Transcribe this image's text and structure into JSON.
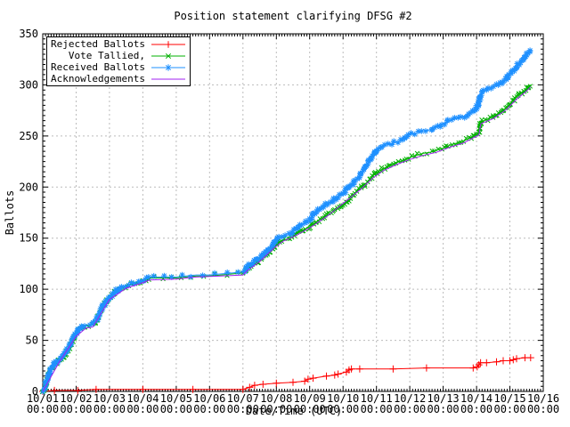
{
  "window": {
    "background": "#ffffff"
  },
  "chart_data": {
    "type": "line",
    "title": "Position statement clarifying DFSG #2",
    "xlabel": "Date/Time (UTC)",
    "ylabel": "Ballots",
    "grid": true,
    "legend_position": "top-left",
    "colors": {
      "grid": "#bcbcbc",
      "axis": "#000000",
      "background": "#ffffff"
    },
    "x_axis": {
      "tick_dates": [
        "10/01",
        "10/02",
        "10/03",
        "10/04",
        "10/05",
        "10/06",
        "10/07",
        "10/08",
        "10/09",
        "10/10",
        "10/11",
        "10/12",
        "10/13",
        "10/14",
        "10/15",
        "10/16"
      ],
      "tick_time": "00:00",
      "range_days": [
        0,
        15
      ],
      "minor_ticks_per_day": 12
    },
    "y_axis": {
      "ticks": [
        0,
        50,
        100,
        150,
        200,
        250,
        300,
        350
      ],
      "range": [
        0,
        350
      ],
      "minor_step": 5
    },
    "legend": {
      "entries": [
        {
          "label": "Rejected Ballots",
          "color": "#ff0000",
          "marker": "plus"
        },
        {
          "label": "Vote Tallied,",
          "color": "#00b000",
          "marker": "cross"
        },
        {
          "label": "Received Ballots",
          "color": "#1e90ff",
          "marker": "asterisk"
        },
        {
          "label": "Acknowledgements",
          "color": "#a020f0",
          "marker": "none"
        }
      ]
    },
    "series": [
      {
        "name": "Rejected Ballots",
        "color": "#ff0000",
        "marker": "plus",
        "band": false,
        "points": [
          [
            0,
            0
          ],
          [
            0.35,
            1
          ],
          [
            1.05,
            1
          ],
          [
            1.6,
            2
          ],
          [
            3.0,
            2
          ],
          [
            4.5,
            2
          ],
          [
            6.0,
            2
          ],
          [
            6.2,
            4
          ],
          [
            6.35,
            6
          ],
          [
            6.6,
            7
          ],
          [
            7.0,
            8
          ],
          [
            7.5,
            9
          ],
          [
            7.85,
            10
          ],
          [
            7.95,
            12
          ],
          [
            8.1,
            13
          ],
          [
            8.5,
            15
          ],
          [
            8.75,
            16
          ],
          [
            8.85,
            17
          ],
          [
            9.1,
            19
          ],
          [
            9.18,
            21
          ],
          [
            9.25,
            22
          ],
          [
            9.5,
            22
          ],
          [
            10.5,
            22
          ],
          [
            11.5,
            23
          ],
          [
            12.9,
            23
          ],
          [
            13.02,
            24
          ],
          [
            13.07,
            26
          ],
          [
            13.12,
            28
          ],
          [
            13.3,
            28
          ],
          [
            13.6,
            29
          ],
          [
            13.8,
            30
          ],
          [
            14.0,
            30
          ],
          [
            14.1,
            31
          ],
          [
            14.2,
            32
          ],
          [
            14.45,
            33
          ],
          [
            14.62,
            33
          ]
        ]
      },
      {
        "name": "Vote Tallied,",
        "color": "#00b000",
        "marker": "cross",
        "band": true,
        "points": [
          [
            0,
            0
          ],
          [
            0.08,
            5
          ],
          [
            0.15,
            13
          ],
          [
            0.25,
            21
          ],
          [
            0.35,
            26
          ],
          [
            0.5,
            30
          ],
          [
            0.65,
            35
          ],
          [
            0.75,
            40
          ],
          [
            0.85,
            47
          ],
          [
            0.95,
            53
          ],
          [
            1.05,
            58
          ],
          [
            1.15,
            62
          ],
          [
            1.3,
            64
          ],
          [
            1.5,
            65
          ],
          [
            1.62,
            70
          ],
          [
            1.72,
            77
          ],
          [
            1.82,
            83
          ],
          [
            1.92,
            88
          ],
          [
            2.02,
            92
          ],
          [
            2.12,
            95
          ],
          [
            2.22,
            98
          ],
          [
            2.35,
            101
          ],
          [
            2.5,
            103
          ],
          [
            2.7,
            105
          ],
          [
            2.9,
            107
          ],
          [
            3.05,
            109
          ],
          [
            3.2,
            111
          ],
          [
            3.5,
            111
          ],
          [
            3.75,
            111
          ],
          [
            4.0,
            111
          ],
          [
            4.3,
            112
          ],
          [
            4.6,
            113
          ],
          [
            5.0,
            113
          ],
          [
            5.35,
            114
          ],
          [
            5.7,
            115
          ],
          [
            6.0,
            116
          ],
          [
            6.12,
            119
          ],
          [
            6.22,
            122
          ],
          [
            6.35,
            125
          ],
          [
            6.5,
            128
          ],
          [
            6.65,
            132
          ],
          [
            6.8,
            137
          ],
          [
            6.95,
            142
          ],
          [
            7.05,
            146
          ],
          [
            7.2,
            148
          ],
          [
            7.4,
            150
          ],
          [
            7.55,
            153
          ],
          [
            7.7,
            156
          ],
          [
            7.85,
            159
          ],
          [
            8.0,
            161
          ],
          [
            8.15,
            165
          ],
          [
            8.3,
            168
          ],
          [
            8.5,
            172
          ],
          [
            8.7,
            176
          ],
          [
            8.9,
            181
          ],
          [
            9.1,
            186
          ],
          [
            9.3,
            192
          ],
          [
            9.5,
            198
          ],
          [
            9.7,
            204
          ],
          [
            9.9,
            211
          ],
          [
            10.0,
            214
          ],
          [
            10.2,
            218
          ],
          [
            10.4,
            221
          ],
          [
            10.6,
            224
          ],
          [
            10.8,
            226
          ],
          [
            11.0,
            229
          ],
          [
            11.2,
            231
          ],
          [
            11.4,
            233
          ],
          [
            11.6,
            234
          ],
          [
            11.8,
            236
          ],
          [
            12.0,
            238
          ],
          [
            12.2,
            241
          ],
          [
            12.4,
            243
          ],
          [
            12.6,
            245
          ],
          [
            12.8,
            248
          ],
          [
            12.95,
            251
          ],
          [
            13.07,
            253
          ],
          [
            13.13,
            264
          ],
          [
            13.3,
            266
          ],
          [
            13.5,
            269
          ],
          [
            13.7,
            273
          ],
          [
            13.9,
            278
          ],
          [
            14.05,
            283
          ],
          [
            14.2,
            288
          ],
          [
            14.35,
            292
          ],
          [
            14.5,
            296
          ],
          [
            14.62,
            300
          ]
        ]
      },
      {
        "name": "Received Ballots",
        "color": "#1e90ff",
        "marker": "asterisk",
        "band": true,
        "points": [
          [
            0,
            0
          ],
          [
            0.08,
            6
          ],
          [
            0.15,
            14
          ],
          [
            0.25,
            22
          ],
          [
            0.35,
            27
          ],
          [
            0.5,
            31
          ],
          [
            0.65,
            36
          ],
          [
            0.75,
            41
          ],
          [
            0.85,
            48
          ],
          [
            0.95,
            54
          ],
          [
            1.05,
            59
          ],
          [
            1.15,
            63
          ],
          [
            1.3,
            65
          ],
          [
            1.5,
            66
          ],
          [
            1.62,
            71
          ],
          [
            1.72,
            78
          ],
          [
            1.82,
            84
          ],
          [
            1.92,
            89
          ],
          [
            2.02,
            93
          ],
          [
            2.12,
            96
          ],
          [
            2.22,
            99
          ],
          [
            2.35,
            102
          ],
          [
            2.5,
            104
          ],
          [
            2.7,
            106
          ],
          [
            2.9,
            108
          ],
          [
            3.05,
            110
          ],
          [
            3.2,
            112
          ],
          [
            3.5,
            112
          ],
          [
            3.75,
            112
          ],
          [
            4.0,
            112
          ],
          [
            4.3,
            113
          ],
          [
            4.6,
            114
          ],
          [
            5.0,
            114
          ],
          [
            5.35,
            115
          ],
          [
            5.7,
            116
          ],
          [
            6.0,
            117
          ],
          [
            6.12,
            121
          ],
          [
            6.22,
            125
          ],
          [
            6.35,
            128
          ],
          [
            6.5,
            131
          ],
          [
            6.65,
            135
          ],
          [
            6.8,
            140
          ],
          [
            6.95,
            146
          ],
          [
            7.05,
            150
          ],
          [
            7.2,
            152
          ],
          [
            7.4,
            154
          ],
          [
            7.55,
            158
          ],
          [
            7.7,
            162
          ],
          [
            7.85,
            165
          ],
          [
            8.0,
            168
          ],
          [
            8.12,
            173
          ],
          [
            8.25,
            178
          ],
          [
            8.4,
            181
          ],
          [
            8.55,
            184
          ],
          [
            8.7,
            187
          ],
          [
            8.85,
            190
          ],
          [
            9.0,
            194
          ],
          [
            9.15,
            199
          ],
          [
            9.3,
            204
          ],
          [
            9.45,
            209
          ],
          [
            9.6,
            216
          ],
          [
            9.75,
            224
          ],
          [
            9.9,
            231
          ],
          [
            10.0,
            236
          ],
          [
            10.15,
            239
          ],
          [
            10.3,
            241
          ],
          [
            10.5,
            243
          ],
          [
            10.7,
            245
          ],
          [
            10.85,
            248
          ],
          [
            11.0,
            251
          ],
          [
            11.2,
            253
          ],
          [
            11.4,
            255
          ],
          [
            11.6,
            256
          ],
          [
            11.8,
            259
          ],
          [
            12.0,
            262
          ],
          [
            12.2,
            265
          ],
          [
            12.4,
            267
          ],
          [
            12.6,
            269
          ],
          [
            12.8,
            272
          ],
          [
            12.95,
            275
          ],
          [
            13.05,
            280
          ],
          [
            13.1,
            289
          ],
          [
            13.2,
            294
          ],
          [
            13.3,
            296
          ],
          [
            13.5,
            298
          ],
          [
            13.65,
            300
          ],
          [
            13.8,
            304
          ],
          [
            13.95,
            309
          ],
          [
            14.1,
            314
          ],
          [
            14.25,
            320
          ],
          [
            14.4,
            326
          ],
          [
            14.55,
            331
          ],
          [
            14.62,
            334
          ]
        ]
      },
      {
        "name": "Acknowledgements",
        "color": "#a020f0",
        "marker": "none",
        "band": false,
        "points": [
          [
            0,
            0
          ],
          [
            0.5,
            29
          ],
          [
            1.0,
            54
          ],
          [
            1.3,
            62
          ],
          [
            1.5,
            63
          ],
          [
            2.0,
            90
          ],
          [
            2.5,
            101
          ],
          [
            3.05,
            107
          ],
          [
            3.2,
            109
          ],
          [
            4.0,
            110
          ],
          [
            4.6,
            112
          ],
          [
            5.35,
            113
          ],
          [
            6.0,
            114
          ],
          [
            6.12,
            118
          ],
          [
            6.5,
            127
          ],
          [
            6.95,
            141
          ],
          [
            7.2,
            147
          ],
          [
            7.55,
            152
          ],
          [
            8.0,
            160
          ],
          [
            8.5,
            171
          ],
          [
            9.0,
            184
          ],
          [
            9.5,
            197
          ],
          [
            9.9,
            209
          ],
          [
            10.2,
            216
          ],
          [
            10.6,
            222
          ],
          [
            11.0,
            227
          ],
          [
            11.4,
            231
          ],
          [
            11.8,
            234
          ],
          [
            12.2,
            239
          ],
          [
            12.6,
            243
          ],
          [
            12.95,
            249
          ],
          [
            13.07,
            251
          ],
          [
            13.13,
            262
          ],
          [
            13.5,
            267
          ],
          [
            13.9,
            276
          ],
          [
            14.2,
            286
          ],
          [
            14.5,
            294
          ],
          [
            14.62,
            298
          ]
        ]
      }
    ]
  }
}
